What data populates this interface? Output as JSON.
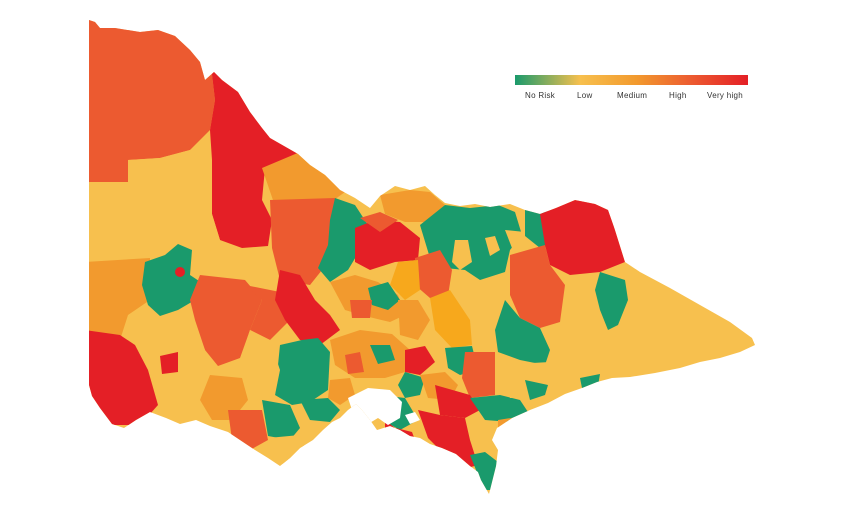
{
  "legend": {
    "labels": [
      "No Risk",
      "Low",
      "Medium",
      "High",
      "Very high"
    ],
    "colors": [
      "#1a9a6c",
      "#f7c04e",
      "#f29a2e",
      "#ec5a30",
      "#e41f26"
    ]
  }
}
